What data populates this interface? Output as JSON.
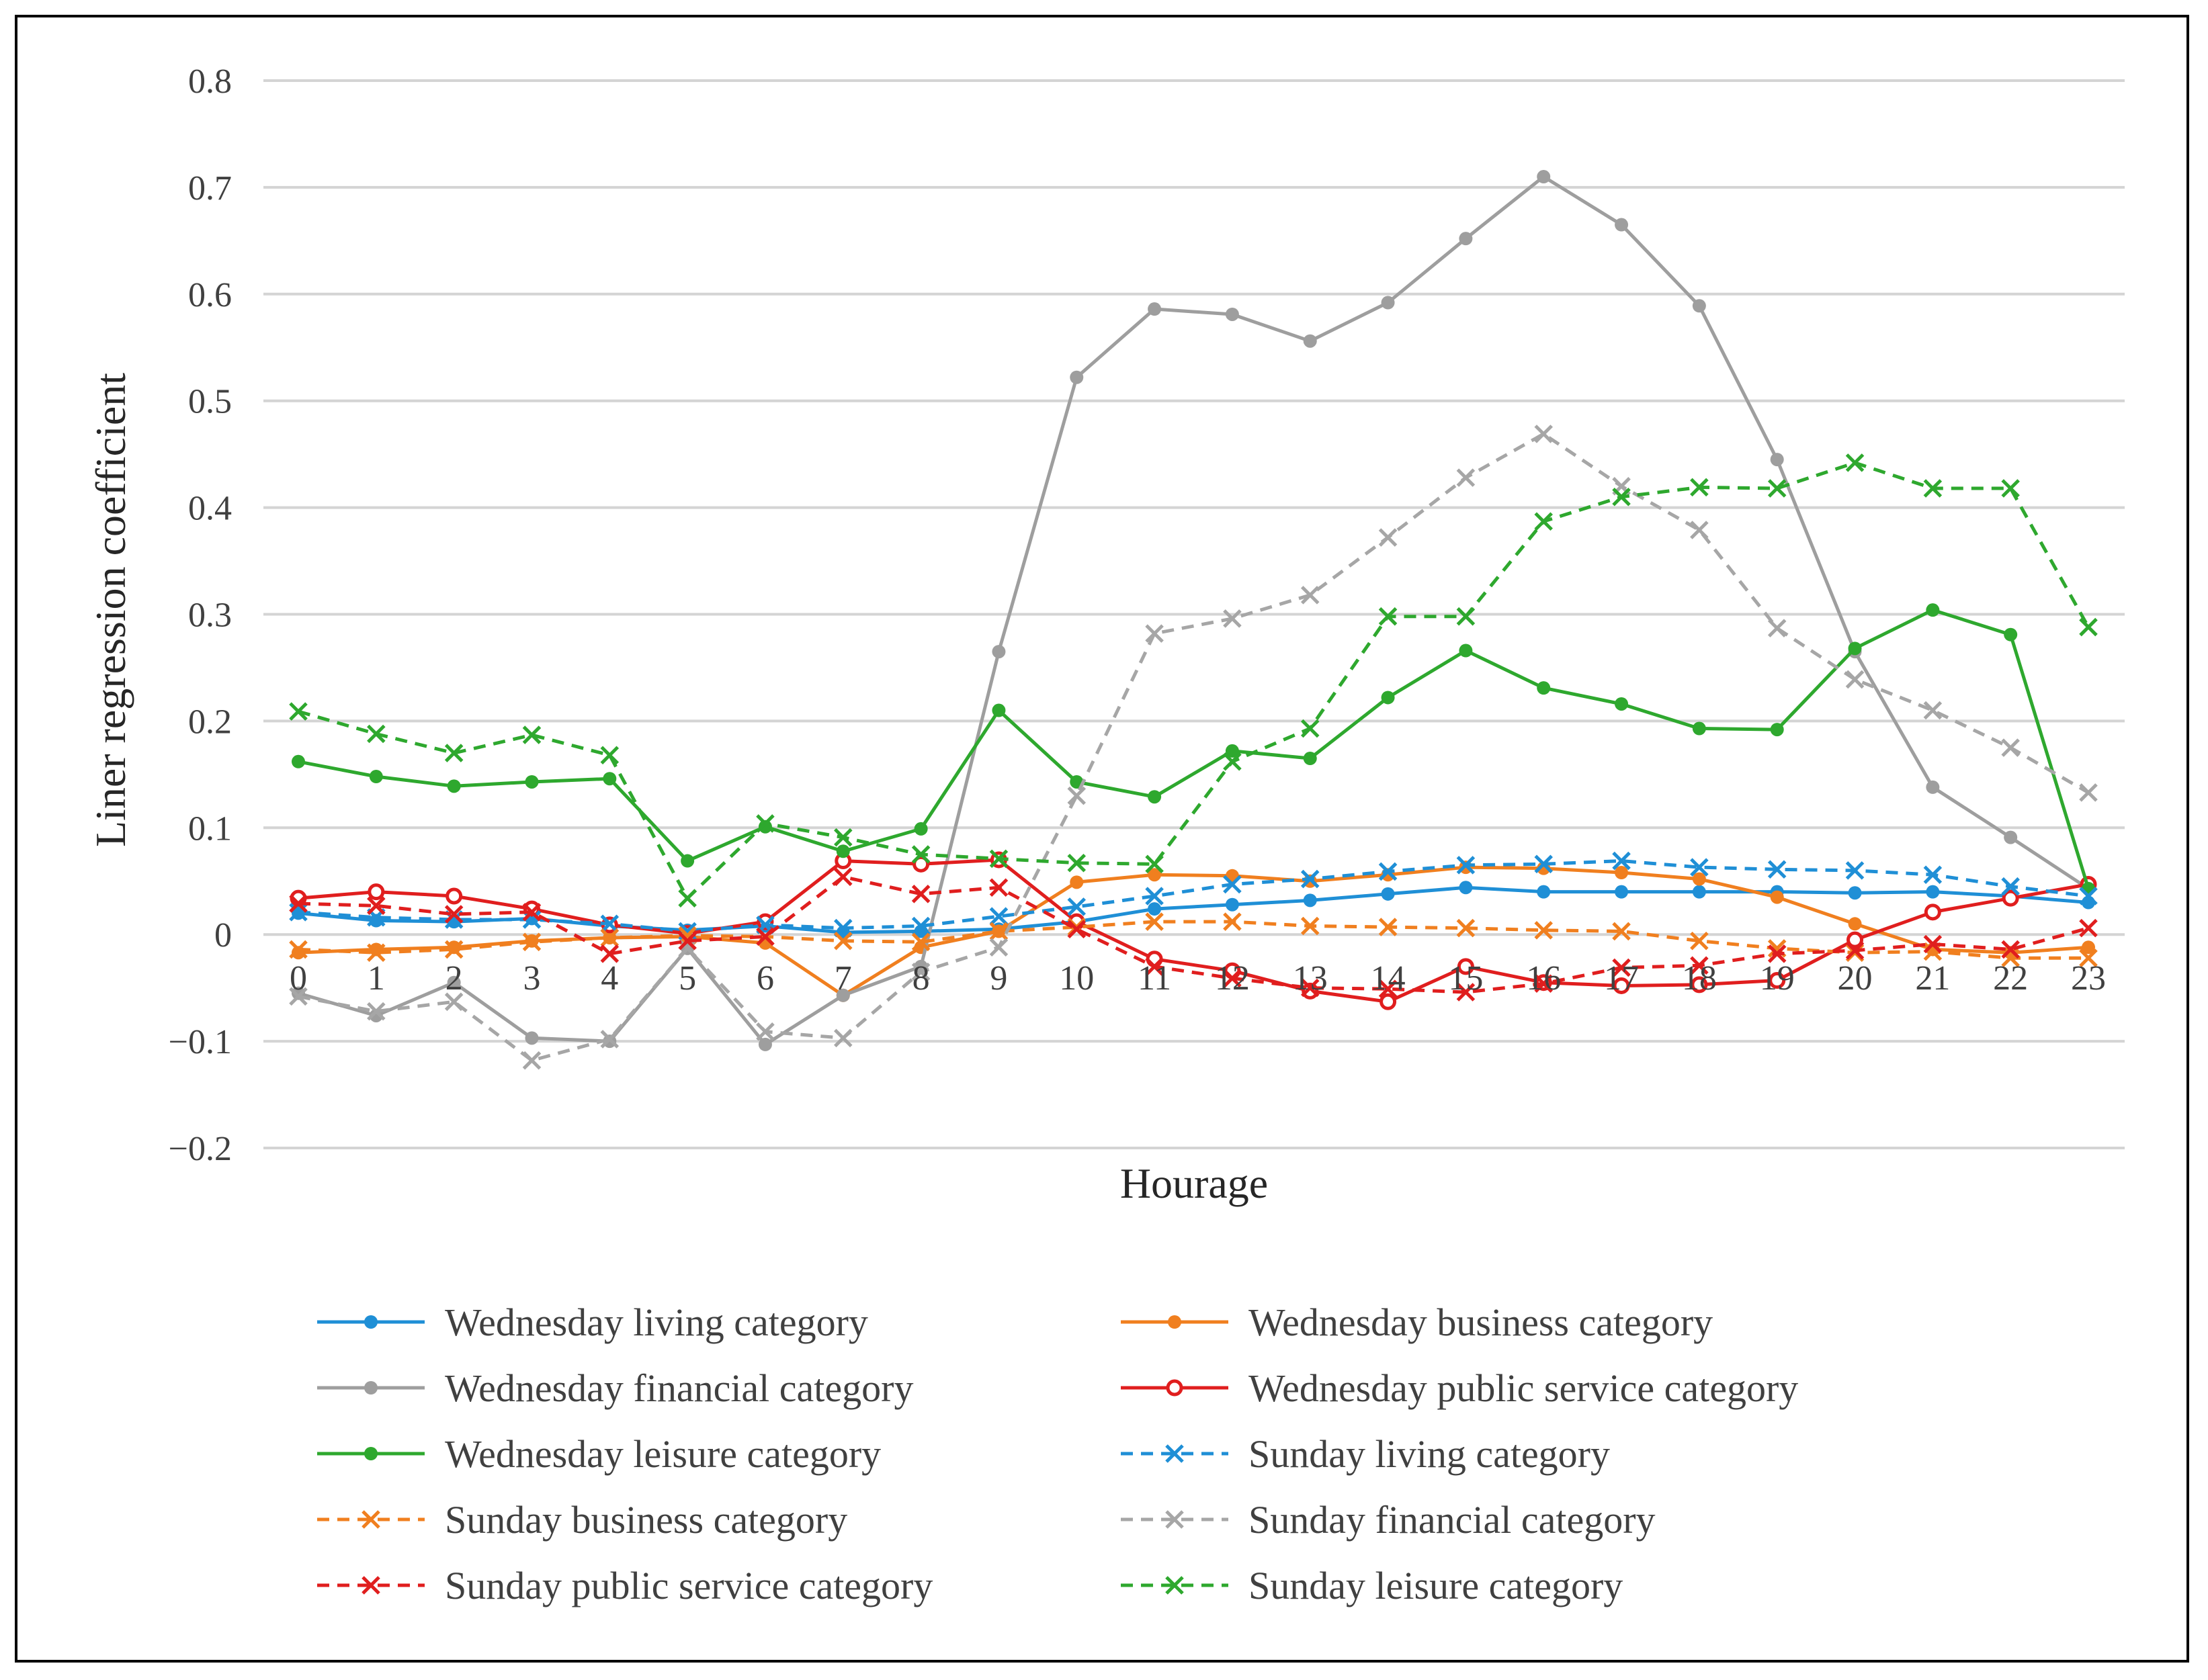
{
  "chart_data": {
    "type": "line",
    "title": "",
    "xlabel": "Hourage",
    "ylabel": "Liner regression coefficient",
    "ylim": [
      -0.2,
      0.8
    ],
    "ytick_step": 0.1,
    "grid": true,
    "legend_position": "bottom",
    "categories": [
      "0",
      "1",
      "2",
      "3",
      "4",
      "5",
      "6",
      "7",
      "8",
      "9",
      "10",
      "11",
      "12",
      "13",
      "14",
      "15",
      "16",
      "17",
      "18",
      "19",
      "20",
      "21",
      "22",
      "23"
    ],
    "y_tick_labels": [
      "−0.2",
      "−0.1",
      "0",
      "0.1",
      "0.2",
      "0.3",
      "0.4",
      "0.5",
      "0.6",
      "0.7",
      "0.8"
    ],
    "series": [
      {
        "name": "Wednesday living category",
        "color": "#1f8fd6",
        "dash": "solid",
        "marker": "dot",
        "values": [
          0.02,
          0.013,
          0.012,
          0.015,
          0.008,
          0.004,
          0.008,
          0.002,
          0.003,
          0.005,
          0.012,
          0.024,
          0.028,
          0.032,
          0.038,
          0.044,
          0.04,
          0.04,
          0.04,
          0.04,
          0.039,
          0.04,
          0.036,
          0.03
        ]
      },
      {
        "name": "Wednesday business category",
        "color": "#f07f1f",
        "dash": "solid",
        "marker": "dot",
        "values": [
          -0.017,
          -0.014,
          -0.012,
          -0.006,
          -0.003,
          -0.002,
          -0.008,
          -0.057,
          -0.012,
          0.003,
          0.049,
          0.056,
          0.055,
          0.05,
          0.056,
          0.063,
          0.062,
          0.058,
          0.052,
          0.035,
          0.01,
          -0.014,
          -0.017,
          -0.012
        ]
      },
      {
        "name": "Wednesday financial category",
        "color": "#9e9e9e",
        "dash": "solid",
        "marker": "dot",
        "values": [
          -0.055,
          -0.076,
          -0.045,
          -0.097,
          -0.1,
          -0.013,
          -0.103,
          -0.057,
          -0.03,
          0.265,
          0.522,
          0.586,
          0.581,
          0.556,
          0.592,
          0.652,
          0.71,
          0.665,
          0.589,
          0.445,
          0.265,
          0.138,
          0.091,
          0.043
        ]
      },
      {
        "name": "Wednesday public service category",
        "color": "#e01e1e",
        "dash": "solid",
        "marker": "ring",
        "values": [
          0.034,
          0.04,
          0.036,
          0.024,
          0.009,
          0.001,
          0.012,
          0.069,
          0.066,
          0.07,
          0.012,
          -0.023,
          -0.034,
          -0.053,
          -0.063,
          -0.03,
          -0.045,
          -0.048,
          -0.047,
          -0.043,
          -0.005,
          0.021,
          0.034,
          0.047
        ]
      },
      {
        "name": "Wednesday leisure category",
        "color": "#2ea82e",
        "dash": "solid",
        "marker": "dot",
        "values": [
          0.162,
          0.148,
          0.139,
          0.143,
          0.146,
          0.069,
          0.101,
          0.078,
          0.099,
          0.21,
          0.143,
          0.129,
          0.172,
          0.165,
          0.222,
          0.266,
          0.231,
          0.216,
          0.193,
          0.192,
          0.268,
          0.304,
          0.281,
          0.043
        ]
      },
      {
        "name": "Sunday living category",
        "color": "#1f8fd6",
        "dash": "dashed",
        "marker": "x",
        "values": [
          0.021,
          0.016,
          0.014,
          0.014,
          0.01,
          0.003,
          0.009,
          0.006,
          0.008,
          0.017,
          0.026,
          0.036,
          0.047,
          0.052,
          0.059,
          0.065,
          0.066,
          0.069,
          0.063,
          0.061,
          0.06,
          0.056,
          0.045,
          0.036
        ]
      },
      {
        "name": "Sunday business category",
        "color": "#f07f1f",
        "dash": "dashed",
        "marker": "x",
        "values": [
          -0.014,
          -0.017,
          -0.014,
          -0.007,
          -0.003,
          -0.001,
          -0.002,
          -0.006,
          -0.007,
          0.003,
          0.007,
          0.012,
          0.012,
          0.008,
          0.007,
          0.006,
          0.004,
          0.003,
          -0.006,
          -0.013,
          -0.017,
          -0.016,
          -0.022,
          -0.022
        ]
      },
      {
        "name": "Sunday financial category",
        "color": "#a6a6a6",
        "dash": "dashed",
        "marker": "x",
        "values": [
          -0.058,
          -0.072,
          -0.063,
          -0.118,
          -0.098,
          -0.013,
          -0.091,
          -0.097,
          -0.035,
          -0.012,
          0.13,
          0.282,
          0.296,
          0.318,
          0.372,
          0.428,
          0.469,
          0.42,
          0.379,
          0.287,
          0.239,
          0.21,
          0.175,
          0.133
        ]
      },
      {
        "name": "Sunday public service category",
        "color": "#e01e1e",
        "dash": "dashed",
        "marker": "x",
        "values": [
          0.029,
          0.027,
          0.019,
          0.021,
          -0.018,
          -0.006,
          -0.002,
          0.054,
          0.038,
          0.044,
          0.005,
          -0.03,
          -0.041,
          -0.05,
          -0.051,
          -0.054,
          -0.046,
          -0.031,
          -0.029,
          -0.018,
          -0.015,
          -0.009,
          -0.014,
          0.006
        ]
      },
      {
        "name": "Sunday leisure category",
        "color": "#2ea82e",
        "dash": "dashed",
        "marker": "x",
        "values": [
          0.209,
          0.188,
          0.17,
          0.187,
          0.168,
          0.034,
          0.104,
          0.091,
          0.075,
          0.071,
          0.067,
          0.066,
          0.162,
          0.193,
          0.298,
          0.298,
          0.387,
          0.41,
          0.419,
          0.418,
          0.442,
          0.418,
          0.418,
          0.288
        ]
      }
    ]
  }
}
